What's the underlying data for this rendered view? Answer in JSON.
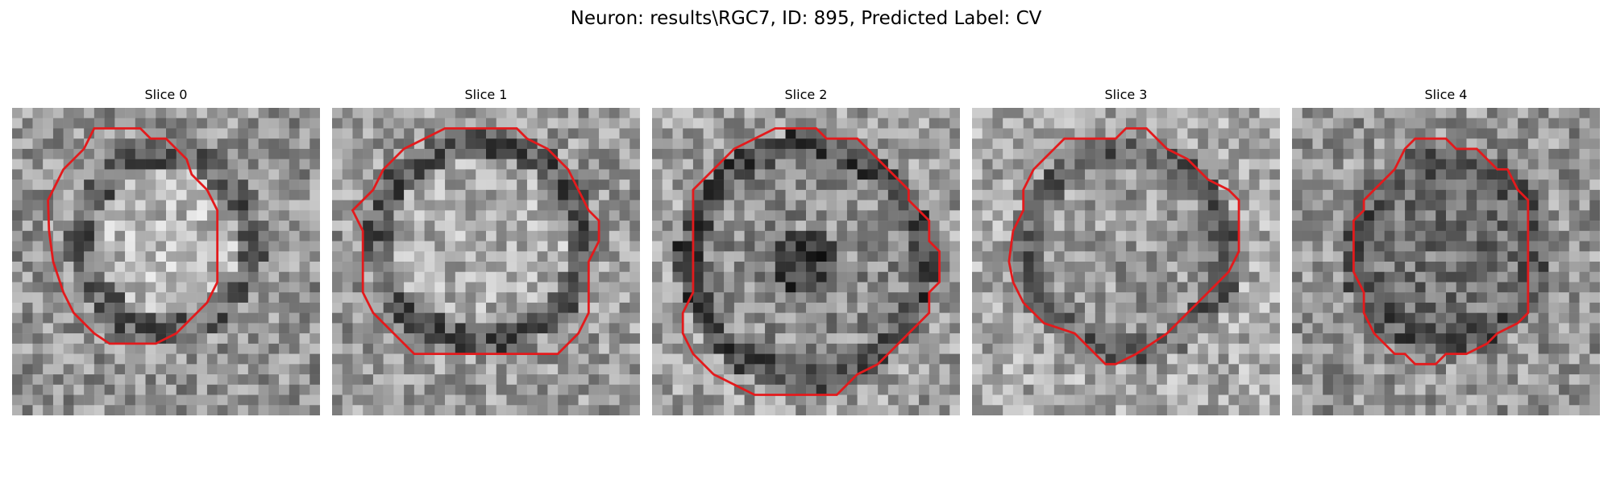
{
  "figure": {
    "title": "Neuron: results\\RGC7, ID: 895, Predicted Label: CV"
  },
  "outline_color": "#e31a1c",
  "colormap": "gray",
  "panels": [
    {
      "title": "Slice 0",
      "contour_icon": "red-cell-outline"
    },
    {
      "title": "Slice 1",
      "contour_icon": "red-cell-outline"
    },
    {
      "title": "Slice 2",
      "contour_icon": "red-cell-outline"
    },
    {
      "title": "Slice 3",
      "contour_icon": "red-cell-outline"
    },
    {
      "title": "Slice 4",
      "contour_icon": "red-cell-outline"
    }
  ]
}
